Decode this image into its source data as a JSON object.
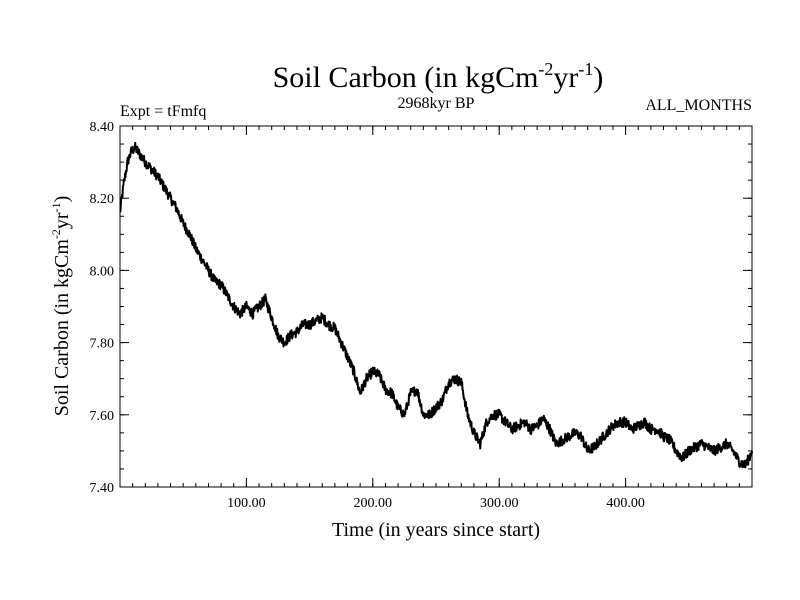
{
  "chart_data": {
    "type": "line",
    "title": {
      "text": "Soil Carbon (in kgCm",
      "sup1": "-2",
      "mid": "yr",
      "sup2": "-1",
      "end": ")"
    },
    "subtitle_left": "Expt = tFmfq",
    "subtitle_center": "2968kyr BP",
    "subtitle_right": "ALL_MONTHS",
    "xlabel": "Time (in years since start)",
    "ylabel": {
      "text": "Soil Carbon (in kgCm",
      "sup1": "-2",
      "mid": "yr",
      "sup2": "-1",
      "end": ")"
    },
    "xlim": [
      0,
      500
    ],
    "ylim": [
      7.4,
      8.4
    ],
    "x_ticks": [
      100,
      200,
      300,
      400
    ],
    "x_tick_labels": [
      "100.00",
      "200.00",
      "300.00",
      "400.00"
    ],
    "y_ticks": [
      7.4,
      7.6,
      7.8,
      8.0,
      8.2,
      8.4
    ],
    "y_tick_labels": [
      "7.40",
      "7.60",
      "7.80",
      "8.00",
      "8.20",
      "8.40"
    ],
    "line_color": "#000000",
    "series": [
      {
        "name": "Soil Carbon",
        "x": [
          0,
          3,
          6,
          9,
          12,
          16,
          20,
          25,
          30,
          35,
          40,
          45,
          50,
          55,
          60,
          65,
          70,
          75,
          80,
          85,
          90,
          95,
          100,
          105,
          110,
          115,
          120,
          125,
          130,
          135,
          140,
          145,
          150,
          155,
          160,
          165,
          170,
          175,
          180,
          185,
          190,
          195,
          200,
          205,
          210,
          215,
          220,
          225,
          230,
          235,
          240,
          245,
          250,
          255,
          260,
          265,
          270,
          275,
          280,
          285,
          290,
          295,
          300,
          305,
          310,
          315,
          320,
          325,
          330,
          335,
          340,
          345,
          350,
          355,
          360,
          365,
          370,
          375,
          380,
          385,
          390,
          395,
          400,
          405,
          410,
          415,
          420,
          425,
          430,
          435,
          440,
          445,
          450,
          455,
          460,
          465,
          470,
          475,
          480,
          485,
          490,
          495,
          500
        ],
        "y": [
          8.16,
          8.24,
          8.3,
          8.33,
          8.34,
          8.32,
          8.3,
          8.28,
          8.26,
          8.23,
          8.2,
          8.17,
          8.13,
          8.1,
          8.06,
          8.03,
          8.0,
          7.97,
          7.96,
          7.93,
          7.9,
          7.88,
          7.9,
          7.88,
          7.9,
          7.92,
          7.87,
          7.82,
          7.8,
          7.82,
          7.83,
          7.85,
          7.85,
          7.86,
          7.87,
          7.85,
          7.84,
          7.8,
          7.76,
          7.72,
          7.66,
          7.7,
          7.72,
          7.71,
          7.67,
          7.66,
          7.62,
          7.6,
          7.66,
          7.67,
          7.6,
          7.6,
          7.62,
          7.64,
          7.69,
          7.7,
          7.69,
          7.6,
          7.55,
          7.52,
          7.58,
          7.6,
          7.6,
          7.58,
          7.56,
          7.57,
          7.58,
          7.56,
          7.57,
          7.59,
          7.56,
          7.52,
          7.53,
          7.54,
          7.55,
          7.54,
          7.5,
          7.51,
          7.53,
          7.55,
          7.57,
          7.58,
          7.58,
          7.56,
          7.57,
          7.58,
          7.56,
          7.56,
          7.54,
          7.53,
          7.5,
          7.48,
          7.5,
          7.51,
          7.52,
          7.51,
          7.5,
          7.51,
          7.52,
          7.5,
          7.47,
          7.46,
          7.5
        ]
      }
    ]
  }
}
